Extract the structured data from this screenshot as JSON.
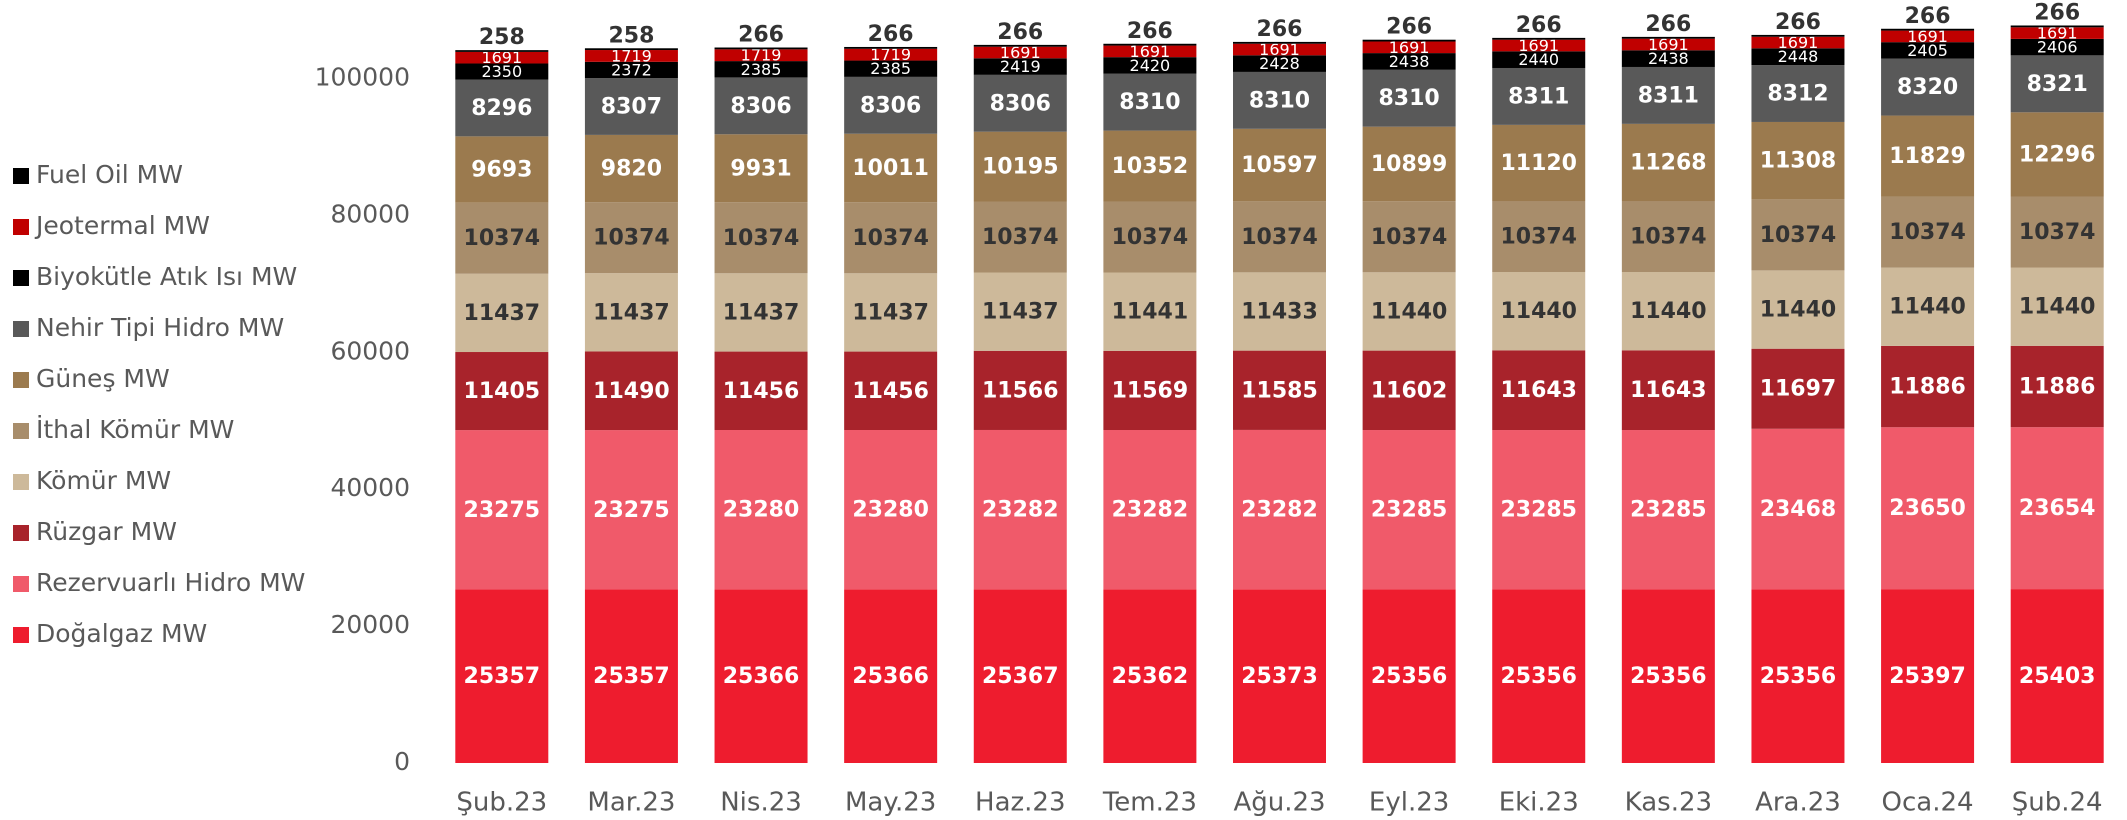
{
  "chart_data": {
    "type": "stacked_bar",
    "categories": [
      "Şub.23",
      "Mar.23",
      "Nis.23",
      "May.23",
      "Haz.23",
      "Tem.23",
      "Ağu.23",
      "Eyl.23",
      "Eki.23",
      "Kas.23",
      "Ara.23",
      "Oca.24",
      "Şub.24"
    ],
    "series": [
      {
        "name": "Doğalgaz MW",
        "color": "#ee1c2e",
        "values": [
          25357,
          25357,
          25366,
          25366,
          25367,
          25362,
          25373,
          25356,
          25356,
          25356,
          25356,
          25397,
          25403
        ]
      },
      {
        "name": "Rezervuarlı Hidro MW",
        "color": "#f05a6a",
        "values": [
          23275,
          23275,
          23280,
          23280,
          23282,
          23282,
          23282,
          23285,
          23285,
          23285,
          23468,
          23650,
          23654
        ]
      },
      {
        "name": "Rüzgar MW",
        "color": "#a8232b",
        "values": [
          11405,
          11490,
          11456,
          11456,
          11566,
          11569,
          11585,
          11602,
          11643,
          11643,
          11697,
          11886,
          11886
        ]
      },
      {
        "name": "Kömür MW",
        "color": "#cdb99a",
        "values": [
          11437,
          11437,
          11437,
          11437,
          11437,
          11441,
          11433,
          11440,
          11440,
          11440,
          11440,
          11440,
          11440
        ]
      },
      {
        "name": "İthal Kömür MW",
        "color": "#a88d6b",
        "values": [
          10374,
          10374,
          10374,
          10374,
          10374,
          10374,
          10374,
          10374,
          10374,
          10374,
          10374,
          10374,
          10374
        ]
      },
      {
        "name": "Güneş MW",
        "color": "#9b7a4e",
        "values": [
          9693,
          9820,
          9931,
          10011,
          10195,
          10352,
          10597,
          10899,
          11120,
          11268,
          11308,
          11829,
          12296
        ]
      },
      {
        "name": "Nehir Tipi Hidro MW",
        "color": "#595959",
        "values": [
          8296,
          8307,
          8306,
          8306,
          8306,
          8310,
          8310,
          8310,
          8311,
          8311,
          8312,
          8320,
          8321
        ]
      },
      {
        "name": "Biyokütle Atık Isı MW",
        "color": "#000000",
        "values": [
          2350,
          2372,
          2385,
          2385,
          2419,
          2420,
          2428,
          2438,
          2440,
          2438,
          2448,
          2405,
          2406
        ]
      },
      {
        "name": "Jeotermal MW",
        "color": "#c00000",
        "values": [
          1691,
          1719,
          1719,
          1719,
          1691,
          1691,
          1691,
          1691,
          1691,
          1691,
          1691,
          1691,
          1691
        ]
      },
      {
        "name": "Fuel Oil MW",
        "color": "#000000",
        "values": [
          258,
          258,
          266,
          266,
          266,
          266,
          266,
          266,
          266,
          266,
          266,
          266,
          266
        ]
      }
    ],
    "ylim": [
      0,
      110000
    ],
    "yticks": [
      0,
      20000,
      40000,
      60000,
      80000,
      100000
    ],
    "grid": false,
    "legend": "left"
  }
}
